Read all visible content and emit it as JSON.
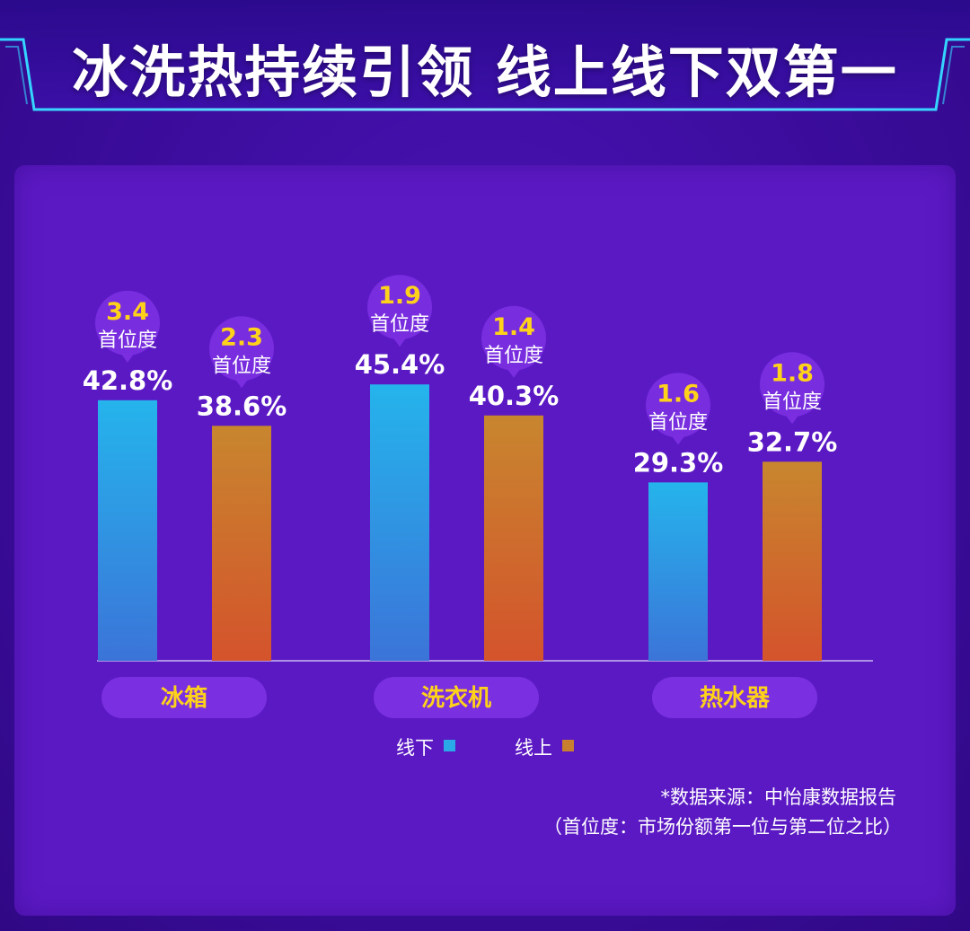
{
  "title": "冰洗热持续引领  线上线下双第一",
  "chart_data": {
    "type": "bar",
    "categories": [
      "冰箱",
      "洗衣机",
      "热水器"
    ],
    "series": [
      {
        "name": "线下",
        "values": [
          42.8,
          45.4,
          29.3
        ],
        "value_labels": [
          "42.8%",
          "45.4%",
          "29.3%"
        ],
        "first_ratio": [
          "3.4",
          "1.9",
          "1.6"
        ],
        "color": "#2aa8e8"
      },
      {
        "name": "线上",
        "values": [
          38.6,
          40.3,
          32.7
        ],
        "value_labels": [
          "38.6%",
          "40.3%",
          "32.7%"
        ],
        "first_ratio": [
          "2.3",
          "1.4",
          "1.8"
        ],
        "color": "#c8802f"
      }
    ],
    "ratio_label": "首位度",
    "ylim": [
      0,
      50
    ],
    "legend_position": "bottom",
    "grid": false
  },
  "colors": {
    "background": "#3a0c9a",
    "panel": "#5b19c4",
    "ratio_value": "#ffd21a",
    "category_pill": "#7a30e0",
    "offline_top": "#25b4ec",
    "offline_bottom": "#3b74d8",
    "online_top": "#c8862e",
    "online_bottom": "#d4532c"
  },
  "footnote": {
    "source": "*数据来源：中怡康数据报告",
    "definition": "（首位度：市场份额第一位与第二位之比）"
  }
}
